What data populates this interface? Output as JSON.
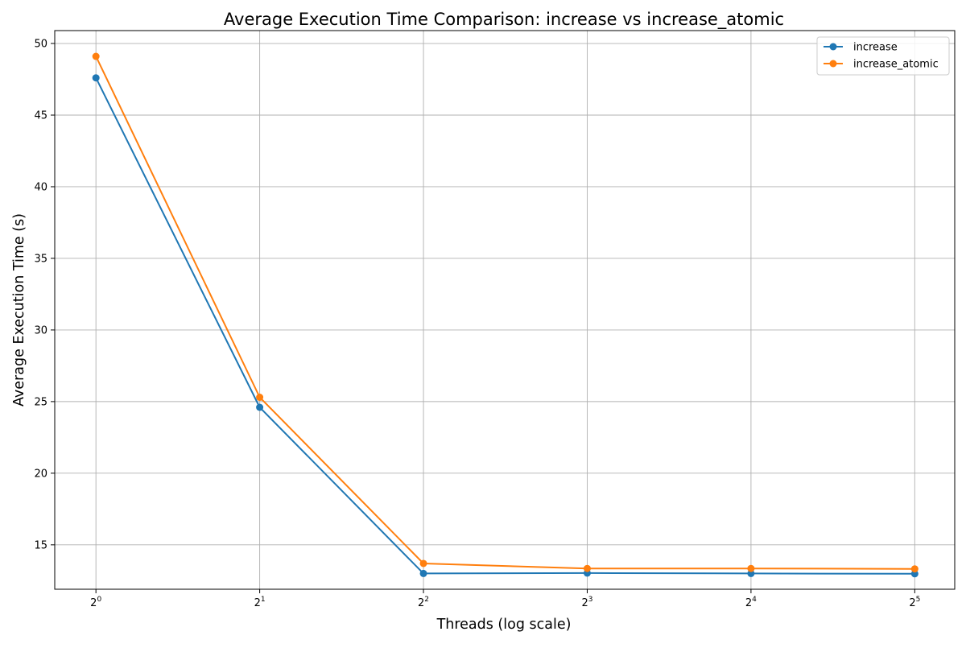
{
  "chart_data": {
    "type": "line",
    "title": "Average Execution Time Comparison: increase vs increase_atomic",
    "xlabel": "Threads (log scale)",
    "ylabel": "Average Execution Time (s)",
    "x_scale": "log2",
    "x": [
      1,
      2,
      4,
      8,
      16,
      32
    ],
    "x_ticks": [
      {
        "value": 1,
        "base": "2",
        "exp": "0"
      },
      {
        "value": 2,
        "base": "2",
        "exp": "1"
      },
      {
        "value": 4,
        "base": "2",
        "exp": "2"
      },
      {
        "value": 8,
        "base": "2",
        "exp": "3"
      },
      {
        "value": 16,
        "base": "2",
        "exp": "4"
      },
      {
        "value": 32,
        "base": "2",
        "exp": "5"
      }
    ],
    "y_ticks": [
      15,
      20,
      25,
      30,
      35,
      40,
      45,
      50
    ],
    "xlim": [
      0.84,
      37.9
    ],
    "ylim": [
      11.9,
      50.9
    ],
    "grid": true,
    "legend_position": "top-right",
    "series": [
      {
        "name": "increase",
        "color": "#1f77b4",
        "marker": "circle",
        "values": [
          47.6,
          24.6,
          13.0,
          13.03,
          13.0,
          12.98
        ]
      },
      {
        "name": "increase_atomic",
        "color": "#ff7f0e",
        "marker": "circle",
        "values": [
          49.1,
          25.3,
          13.7,
          13.35,
          13.35,
          13.32
        ]
      }
    ]
  }
}
